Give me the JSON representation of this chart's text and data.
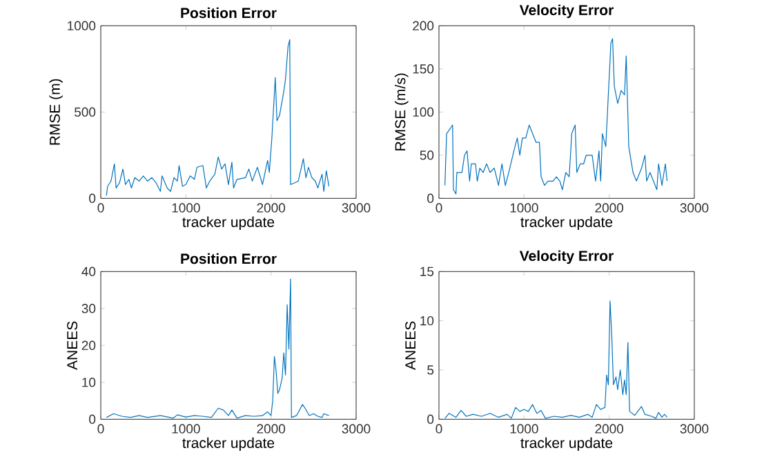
{
  "chart_data": [
    {
      "type": "line",
      "title": "Position Error",
      "xlabel": "tracker update",
      "ylabel": "RMSE (m)",
      "xlim": [
        0,
        3000
      ],
      "ylim": [
        0,
        1000
      ],
      "xticks": [
        0,
        1000,
        2000,
        3000
      ],
      "yticks": [
        0,
        500,
        1000
      ],
      "x": [
        66,
        80,
        120,
        160,
        180,
        220,
        260,
        290,
        330,
        360,
        400,
        450,
        500,
        550,
        600,
        650,
        700,
        720,
        780,
        820,
        860,
        900,
        920,
        960,
        1000,
        1050,
        1100,
        1130,
        1200,
        1240,
        1280,
        1340,
        1380,
        1420,
        1460,
        1500,
        1540,
        1560,
        1600,
        1700,
        1740,
        1780,
        1840,
        1900,
        1960,
        1980,
        2010,
        2050,
        2070,
        2100,
        2150,
        2170,
        2200,
        2220,
        2230,
        2280,
        2320,
        2380,
        2410,
        2440,
        2480,
        2520,
        2550,
        2600,
        2620,
        2650,
        2680
      ],
      "series": [
        {
          "color": "#0072bd",
          "values": [
            15,
            70,
            100,
            200,
            60,
            90,
            170,
            80,
            110,
            60,
            120,
            100,
            130,
            100,
            120,
            90,
            40,
            130,
            60,
            40,
            120,
            100,
            190,
            70,
            80,
            130,
            110,
            180,
            190,
            60,
            100,
            140,
            240,
            170,
            200,
            80,
            210,
            60,
            110,
            120,
            170,
            100,
            180,
            80,
            220,
            150,
            350,
            700,
            450,
            480,
            620,
            690,
            880,
            920,
            80,
            90,
            100,
            230,
            120,
            180,
            120,
            100,
            60,
            140,
            40,
            160,
            70
          ]
        }
      ]
    },
    {
      "type": "line",
      "title": "Velocity Error",
      "xlabel": "tracker update",
      "ylabel": "RMSE (m/s)",
      "xlim": [
        0,
        3000
      ],
      "ylim": [
        0,
        200
      ],
      "xticks": [
        0,
        1000,
        2000,
        3000
      ],
      "yticks": [
        0,
        50,
        100,
        150,
        200
      ],
      "x": [
        70,
        90,
        140,
        160,
        170,
        200,
        210,
        270,
        300,
        330,
        360,
        380,
        430,
        450,
        480,
        520,
        560,
        600,
        650,
        700,
        740,
        780,
        820,
        880,
        920,
        950,
        980,
        1020,
        1060,
        1100,
        1140,
        1180,
        1200,
        1240,
        1280,
        1340,
        1380,
        1420,
        1450,
        1490,
        1530,
        1560,
        1600,
        1620,
        1660,
        1700,
        1730,
        1800,
        1840,
        1880,
        1900,
        1920,
        1960,
        1990,
        2020,
        2040,
        2060,
        2100,
        2140,
        2180,
        2200,
        2230,
        2280,
        2320,
        2380,
        2420,
        2440,
        2480,
        2520,
        2560,
        2580,
        2620,
        2660,
        2680
      ],
      "series": [
        {
          "color": "#0072bd",
          "values": [
            15,
            75,
            82,
            85,
            10,
            5,
            30,
            30,
            50,
            55,
            20,
            40,
            40,
            20,
            35,
            30,
            40,
            30,
            35,
            15,
            40,
            15,
            30,
            55,
            70,
            50,
            70,
            70,
            85,
            75,
            65,
            65,
            25,
            15,
            20,
            20,
            25,
            20,
            10,
            30,
            25,
            75,
            85,
            30,
            40,
            40,
            50,
            50,
            20,
            55,
            20,
            75,
            60,
            120,
            180,
            185,
            130,
            110,
            125,
            120,
            165,
            60,
            30,
            20,
            35,
            50,
            20,
            30,
            20,
            10,
            40,
            15,
            40,
            20
          ]
        }
      ]
    },
    {
      "type": "line",
      "title": "Position Error",
      "xlabel": "tracker update",
      "ylabel": "ANEES",
      "xlim": [
        0,
        3000
      ],
      "ylim": [
        0,
        40
      ],
      "xticks": [
        0,
        1000,
        2000,
        3000
      ],
      "yticks": [
        0,
        10,
        20,
        30,
        40
      ],
      "x": [
        66,
        150,
        250,
        350,
        450,
        550,
        700,
        850,
        900,
        1000,
        1100,
        1200,
        1300,
        1380,
        1440,
        1500,
        1540,
        1600,
        1700,
        1800,
        1900,
        1960,
        2000,
        2020,
        2040,
        2060,
        2080,
        2100,
        2130,
        2150,
        2170,
        2190,
        2210,
        2230,
        2240,
        2300,
        2370,
        2400,
        2450,
        2500,
        2550,
        2600,
        2620,
        2680
      ],
      "series": [
        {
          "color": "#0072bd",
          "values": [
            0.5,
            1.5,
            0.8,
            0.5,
            1,
            0.5,
            1,
            0.3,
            1.2,
            0.6,
            1,
            0.8,
            0.5,
            3,
            2.5,
            1,
            2.5,
            0.3,
            1,
            0.8,
            1,
            2,
            1,
            5,
            17,
            13,
            7,
            8,
            11,
            18,
            12,
            31,
            19,
            38,
            0.5,
            1,
            4,
            3,
            1,
            1.5,
            0.8,
            0.5,
            1.5,
            1
          ]
        }
      ]
    },
    {
      "type": "line",
      "title": "Velocity Error",
      "xlabel": "tracker update",
      "ylabel": "ANEES",
      "xlim": [
        0,
        3000
      ],
      "ylim": [
        0,
        15
      ],
      "xticks": [
        0,
        1000,
        2000,
        3000
      ],
      "yticks": [
        0,
        5,
        10,
        15
      ],
      "x": [
        70,
        120,
        200,
        260,
        320,
        400,
        500,
        600,
        700,
        800,
        850,
        900,
        950,
        1000,
        1050,
        1100,
        1150,
        1200,
        1250,
        1350,
        1450,
        1550,
        1650,
        1750,
        1800,
        1850,
        1900,
        1950,
        1970,
        1990,
        2010,
        2030,
        2050,
        2080,
        2100,
        2130,
        2160,
        2180,
        2200,
        2220,
        2240,
        2300,
        2380,
        2420,
        2500,
        2550,
        2580,
        2620,
        2650,
        2680
      ],
      "series": [
        {
          "color": "#0072bd",
          "values": [
            0.1,
            0.6,
            0.2,
            0.9,
            0.3,
            0.5,
            0.3,
            0.6,
            0.2,
            0.5,
            0.1,
            1.2,
            0.8,
            1,
            0.8,
            1.5,
            0.6,
            0.9,
            0.1,
            0.3,
            0.2,
            0.4,
            0.2,
            0.5,
            0.2,
            1.5,
            1,
            1.2,
            4.5,
            3.5,
            12,
            8.5,
            3.5,
            4.3,
            3,
            5,
            2.5,
            4,
            2.5,
            7.8,
            0.8,
            0.4,
            1.3,
            0.5,
            0.3,
            0.1,
            0.7,
            0.2,
            0.5,
            0.2
          ]
        }
      ]
    }
  ]
}
